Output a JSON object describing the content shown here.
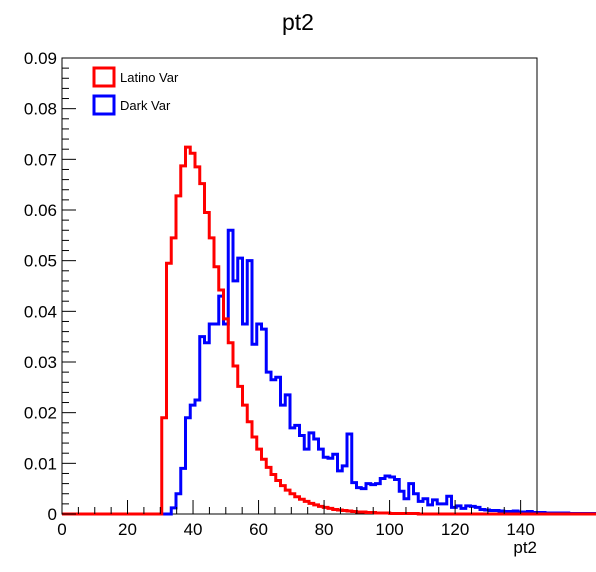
{
  "chart_data": {
    "type": "step-histogram",
    "title": "pt2",
    "xlabel": "pt2",
    "ylabel": "",
    "xlim": [
      0,
      145
    ],
    "ylim": [
      0,
      0.09
    ],
    "grid": false,
    "legend_position": "top-left",
    "x_ticks": [
      0,
      20,
      40,
      60,
      80,
      100,
      120,
      140
    ],
    "x_tick_labels": [
      "0",
      "20",
      "40",
      "60",
      "80",
      "100",
      "120",
      "140"
    ],
    "y_ticks": [
      0,
      0.01,
      0.02,
      0.03,
      0.04,
      0.05,
      0.06,
      0.07,
      0.08,
      0.09
    ],
    "y_tick_labels": [
      "0",
      "0.01",
      "0.02",
      "0.03",
      "0.04",
      "0.05",
      "0.06",
      "0.07",
      "0.08",
      "0.09"
    ],
    "bin_start": 0,
    "bin_width": 1.45,
    "series": [
      {
        "name": "Latino Var",
        "color": "#ff0000",
        "values": [
          0,
          0,
          0,
          0,
          0,
          0,
          0,
          0,
          0,
          0,
          0,
          0,
          0,
          0,
          0,
          0,
          0,
          0,
          0,
          0,
          0,
          0.019,
          0.0495,
          0.0545,
          0.0628,
          0.0687,
          0.0724,
          0.0712,
          0.0685,
          0.0652,
          0.0595,
          0.0545,
          0.0488,
          0.0442,
          0.0385,
          0.0338,
          0.0292,
          0.0252,
          0.0215,
          0.0182,
          0.0152,
          0.0128,
          0.0108,
          0.0092,
          0.0078,
          0.0066,
          0.0056,
          0.0047,
          0.004,
          0.0034,
          0.0029,
          0.0025,
          0.0021,
          0.0018,
          0.0015,
          0.0013,
          0.0011,
          0.0009,
          0.0008,
          0.0007,
          0.0006,
          0.0005,
          0.0004,
          0.0004,
          0.0003,
          0.0003,
          0.0002,
          0.0002,
          0.0002,
          0.0001,
          0.0001,
          0.0001,
          0.0001,
          0.0001,
          0.0001,
          0,
          0,
          0,
          0,
          0,
          0,
          0,
          0,
          0,
          0,
          0,
          0,
          0,
          0,
          0,
          0,
          0,
          0,
          0,
          0,
          0,
          0,
          0,
          0,
          0,
          0,
          0,
          0,
          0,
          0,
          0,
          0,
          0,
          0,
          0,
          0,
          0,
          0,
          0,
          0,
          0,
          0,
          0,
          0,
          0,
          0,
          0,
          0,
          0,
          0,
          0,
          0,
          0,
          0,
          0,
          0,
          0,
          0,
          0,
          0,
          0,
          0,
          0,
          0,
          0,
          0,
          0,
          0,
          0,
          0,
          0,
          0,
          0,
          0,
          0,
          0,
          0,
          0,
          0,
          0,
          0,
          0,
          0,
          0,
          0,
          0,
          0,
          0,
          0,
          0,
          0,
          0,
          0,
          0,
          0,
          0,
          0,
          0,
          0,
          0
        ]
      },
      {
        "name": "Dark Var",
        "color": "#0000ff",
        "values": [
          0,
          0,
          0,
          0,
          0,
          0,
          0,
          0,
          0,
          0,
          0,
          0,
          0,
          0,
          0,
          0,
          0,
          0,
          0,
          0,
          0,
          0,
          0,
          0.0012,
          0.004,
          0.009,
          0.019,
          0.0215,
          0.0225,
          0.035,
          0.0338,
          0.0375,
          0.0375,
          0.043,
          0.0375,
          0.056,
          0.046,
          0.0505,
          0.0375,
          0.05,
          0.0335,
          0.0375,
          0.0365,
          0.028,
          0.0265,
          0.027,
          0.0215,
          0.0235,
          0.017,
          0.0175,
          0.0155,
          0.0128,
          0.016,
          0.0148,
          0.0128,
          0.0112,
          0.011,
          0.0118,
          0.0085,
          0.0095,
          0.0158,
          0.0062,
          0.0052,
          0.005,
          0.006,
          0.0058,
          0.006,
          0.007,
          0.0075,
          0.0073,
          0.0068,
          0.0045,
          0.003,
          0.006,
          0.004,
          0.0025,
          0.003,
          0.0018,
          0.0028,
          0.002,
          0.002,
          0.0035,
          0.0013,
          0.0016,
          0.0011,
          0.0016,
          0.0015,
          0.0013,
          0.0009,
          0.0008,
          0.0007,
          0.0007,
          0.0006,
          0.0005,
          0.0005,
          0.0006,
          0.0004,
          0.0004,
          0.0005,
          0.0003,
          0.0003,
          0.0003,
          0.0003,
          0.0002,
          0.0002,
          0.0002,
          0.0002,
          0.0002,
          0.0001,
          0.0001,
          0.0001,
          0.0001,
          0.0001,
          0.0001,
          0.0001,
          0.0001,
          0.0001,
          0.0001,
          0.0001,
          0.0001,
          0.0001,
          0.0001,
          0.0001,
          0.0001,
          0.0001,
          0.0001,
          0.0001,
          0.0001,
          0.0001,
          0,
          0,
          0,
          0,
          0,
          0,
          0,
          0,
          0,
          0,
          0,
          0,
          0,
          0,
          0,
          0,
          0,
          0,
          0,
          0,
          0
        ]
      }
    ]
  }
}
